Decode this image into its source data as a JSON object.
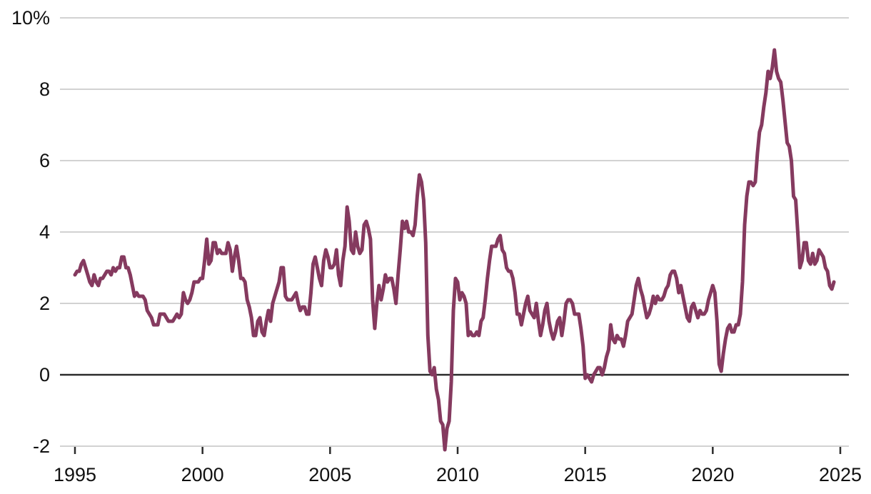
{
  "colors": {
    "line": "#853A5F",
    "grid": "#CCCCCC",
    "zero_line": "#2B2B2B",
    "tick_mark": "#2B2B2B",
    "axis_text": "#111111",
    "background": "#FFFFFF"
  },
  "chart_data": {
    "type": "line",
    "unit": "%",
    "grid": true,
    "legend": "none",
    "x": {
      "start": "1995-01",
      "frequency": "monthly",
      "tick_years": [
        1995,
        2000,
        2005,
        2010,
        2015,
        2020,
        2025
      ],
      "tick_labels": [
        "1995",
        "2000",
        "2005",
        "2010",
        "2015",
        "2020",
        "2025"
      ],
      "range_years": [
        1995,
        2025
      ]
    },
    "y": {
      "tick_values": [
        10,
        8,
        6,
        4,
        2,
        0,
        -2
      ],
      "tick_labels": [
        "10%",
        "8",
        "6",
        "4",
        "2",
        "0",
        "-2"
      ],
      "range": [
        -2.4,
        10.4
      ],
      "zero_line": true
    },
    "series": [
      {
        "color": "#853A5F",
        "values": [
          2.8,
          2.9,
          2.9,
          3.1,
          3.2,
          3.0,
          2.8,
          2.6,
          2.5,
          2.8,
          2.6,
          2.5,
          2.7,
          2.7,
          2.8,
          2.9,
          2.9,
          2.8,
          3.0,
          2.9,
          3.0,
          3.0,
          3.3,
          3.3,
          3.0,
          3.0,
          2.8,
          2.5,
          2.2,
          2.3,
          2.2,
          2.2,
          2.2,
          2.1,
          1.8,
          1.7,
          1.6,
          1.4,
          1.4,
          1.4,
          1.7,
          1.7,
          1.7,
          1.6,
          1.5,
          1.5,
          1.5,
          1.6,
          1.7,
          1.6,
          1.7,
          2.3,
          2.1,
          2.0,
          2.1,
          2.3,
          2.6,
          2.6,
          2.6,
          2.7,
          2.7,
          3.2,
          3.8,
          3.1,
          3.2,
          3.7,
          3.7,
          3.4,
          3.5,
          3.4,
          3.4,
          3.4,
          3.7,
          3.5,
          2.9,
          3.3,
          3.6,
          3.2,
          2.7,
          2.7,
          2.6,
          2.1,
          1.9,
          1.6,
          1.1,
          1.1,
          1.5,
          1.6,
          1.2,
          1.1,
          1.5,
          1.8,
          1.5,
          2.0,
          2.2,
          2.4,
          2.6,
          3.0,
          3.0,
          2.2,
          2.1,
          2.1,
          2.1,
          2.2,
          2.3,
          2.0,
          1.8,
          1.9,
          1.9,
          1.7,
          1.7,
          2.3,
          3.1,
          3.3,
          3.0,
          2.7,
          2.5,
          3.2,
          3.5,
          3.3,
          3.0,
          3.0,
          3.1,
          3.5,
          2.8,
          2.5,
          3.2,
          3.6,
          4.7,
          4.3,
          3.5,
          3.4,
          4.0,
          3.6,
          3.4,
          3.5,
          4.2,
          4.3,
          4.1,
          3.8,
          2.1,
          1.3,
          2.0,
          2.5,
          2.1,
          2.4,
          2.8,
          2.6,
          2.7,
          2.7,
          2.4,
          2.0,
          2.8,
          3.5,
          4.3,
          4.1,
          4.3,
          4.0,
          4.0,
          3.9,
          4.2,
          5.0,
          5.6,
          5.4,
          4.9,
          3.7,
          1.1,
          0.1,
          0.0,
          0.2,
          -0.4,
          -0.7,
          -1.3,
          -1.4,
          -2.1,
          -1.5,
          -1.3,
          -0.2,
          1.8,
          2.7,
          2.6,
          2.1,
          2.3,
          2.2,
          2.0,
          1.1,
          1.2,
          1.1,
          1.1,
          1.2,
          1.1,
          1.5,
          1.6,
          2.1,
          2.7,
          3.2,
          3.6,
          3.6,
          3.6,
          3.8,
          3.9,
          3.5,
          3.4,
          3.0,
          2.9,
          2.9,
          2.7,
          2.3,
          1.7,
          1.7,
          1.4,
          1.7,
          2.0,
          2.2,
          1.8,
          1.7,
          1.6,
          2.0,
          1.5,
          1.1,
          1.4,
          1.8,
          2.0,
          1.5,
          1.2,
          1.0,
          1.2,
          1.5,
          1.6,
          1.1,
          1.5,
          2.0,
          2.1,
          2.1,
          2.0,
          1.7,
          1.7,
          1.7,
          1.3,
          0.8,
          -0.1,
          0.0,
          -0.1,
          -0.2,
          0.0,
          0.1,
          0.2,
          0.2,
          0.0,
          0.2,
          0.5,
          0.7,
          1.4,
          1.0,
          0.9,
          1.1,
          1.0,
          1.0,
          0.8,
          1.1,
          1.5,
          1.6,
          1.7,
          2.1,
          2.5,
          2.7,
          2.4,
          2.2,
          1.9,
          1.6,
          1.7,
          1.9,
          2.2,
          2.0,
          2.2,
          2.1,
          2.1,
          2.2,
          2.4,
          2.5,
          2.8,
          2.9,
          2.9,
          2.7,
          2.3,
          2.5,
          2.2,
          1.9,
          1.6,
          1.5,
          1.9,
          2.0,
          1.8,
          1.6,
          1.8,
          1.7,
          1.7,
          1.8,
          2.1,
          2.3,
          2.5,
          2.3,
          1.5,
          0.3,
          0.1,
          0.6,
          1.0,
          1.3,
          1.4,
          1.2,
          1.2,
          1.4,
          1.4,
          1.7,
          2.6,
          4.2,
          5.0,
          5.4,
          5.4,
          5.3,
          5.4,
          6.2,
          6.8,
          7.0,
          7.5,
          7.9,
          8.5,
          8.3,
          8.6,
          9.1,
          8.5,
          8.3,
          8.2,
          7.7,
          7.1,
          6.5,
          6.4,
          6.0,
          5.0,
          4.9,
          4.0,
          3.0,
          3.2,
          3.7,
          3.7,
          3.2,
          3.1,
          3.4,
          3.1,
          3.2,
          3.5,
          3.4,
          3.3,
          3.0,
          2.9,
          2.5,
          2.4,
          2.6
        ]
      }
    ]
  }
}
